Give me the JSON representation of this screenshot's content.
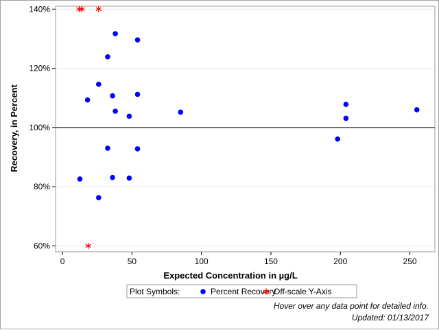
{
  "chart_data": {
    "type": "scatter",
    "xlabel": "Expected Concentration in µg/L",
    "ylabel": "Recovery, in Percent",
    "xlim": [
      -5,
      268
    ],
    "ylim": [
      58,
      141
    ],
    "x_ticks": [
      0,
      50,
      100,
      150,
      200,
      250
    ],
    "y_ticks": [
      60,
      80,
      100,
      120,
      140
    ],
    "y_tick_labels": [
      "60%",
      "80%",
      "100%",
      "120%",
      "140%"
    ],
    "x_tick_labels": [
      "0",
      "50",
      "100",
      "150",
      "200",
      "250"
    ],
    "reference_line_y": 100,
    "grid": "horizontal",
    "series": [
      {
        "name": "Percent Recovery",
        "marker": "dot",
        "color": "#0000ff",
        "points": [
          {
            "x": 12.5,
            "y": 82.6
          },
          {
            "x": 18,
            "y": 109.3
          },
          {
            "x": 26,
            "y": 114.6
          },
          {
            "x": 26,
            "y": 76.3
          },
          {
            "x": 32.5,
            "y": 123.9
          },
          {
            "x": 32.5,
            "y": 93.0
          },
          {
            "x": 36,
            "y": 110.7
          },
          {
            "x": 36,
            "y": 83.1
          },
          {
            "x": 38,
            "y": 131.7
          },
          {
            "x": 38,
            "y": 105.5
          },
          {
            "x": 48,
            "y": 103.8
          },
          {
            "x": 48,
            "y": 82.9
          },
          {
            "x": 54,
            "y": 129.6
          },
          {
            "x": 54,
            "y": 111.2
          },
          {
            "x": 54,
            "y": 92.8
          },
          {
            "x": 85,
            "y": 105.2
          },
          {
            "x": 198,
            "y": 96.1
          },
          {
            "x": 204,
            "y": 107.8
          },
          {
            "x": 204,
            "y": 103.1
          },
          {
            "x": 255,
            "y": 106.0
          }
        ]
      },
      {
        "name": "Off-scale Y-Axis",
        "marker": "asterisk",
        "color": "#ff0000",
        "points": [
          {
            "x": 12,
            "y": 140
          },
          {
            "x": 14,
            "y": 140
          },
          {
            "x": 26,
            "y": 140
          },
          {
            "x": 18.5,
            "y": 60
          }
        ]
      }
    ],
    "legend": {
      "position": "bottom",
      "title": "Plot Symbols:",
      "entries": [
        "Percent Recovery",
        "Off-scale Y-Axis"
      ]
    }
  },
  "notes": {
    "hover_hint": "Hover over any data point for detailed info.",
    "updated": "Updated: 01/13/2017"
  }
}
